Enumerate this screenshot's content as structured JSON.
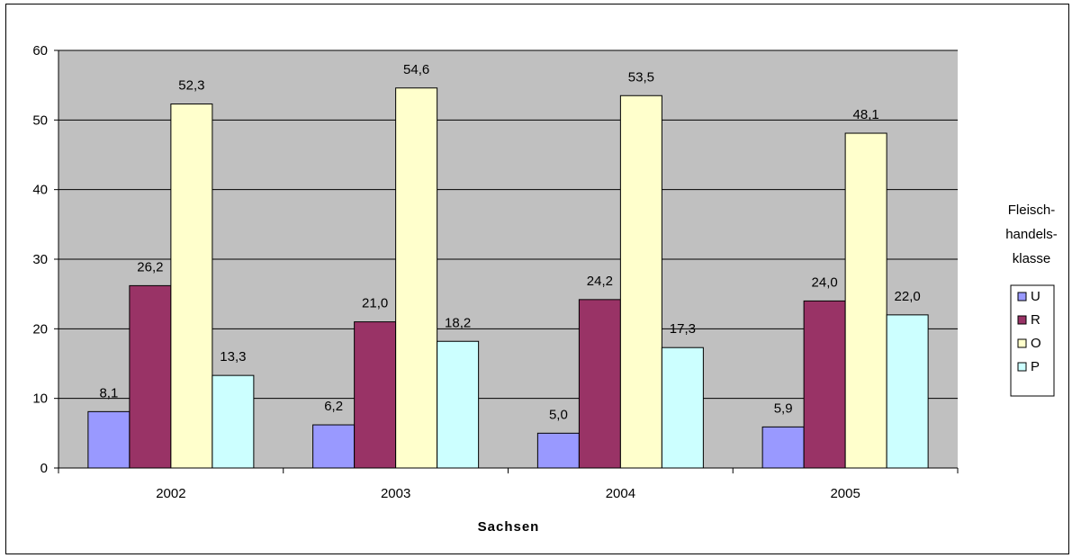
{
  "chart_data": {
    "type": "bar",
    "categories": [
      "2002",
      "2003",
      "2004",
      "2005"
    ],
    "series": [
      {
        "name": "U",
        "values": [
          8.1,
          6.2,
          5.0,
          5.9
        ],
        "labels": [
          "8,1",
          "6,2",
          "5,0",
          "5,9"
        ],
        "color": "#9999ff"
      },
      {
        "name": "R",
        "values": [
          26.2,
          21.0,
          24.2,
          24.0
        ],
        "labels": [
          "26,2",
          "21,0",
          "24,2",
          "24,0"
        ],
        "color": "#993366"
      },
      {
        "name": "O",
        "values": [
          52.3,
          54.6,
          53.5,
          48.1
        ],
        "labels": [
          "52,3",
          "54,6",
          "53,5",
          "48,1"
        ],
        "color": "#ffffcc"
      },
      {
        "name": "P",
        "values": [
          13.3,
          18.2,
          17.3,
          22.0
        ],
        "labels": [
          "13,3",
          "18,2",
          "17,3",
          "22,0"
        ],
        "color": "#ccffff"
      }
    ],
    "xlabel": "Sachsen",
    "ylabel": "",
    "ylim": [
      0,
      60
    ],
    "yticks": [
      0,
      10,
      20,
      30,
      40,
      50,
      60
    ],
    "grid": true,
    "plot_background": "#c0c0c0",
    "legend": {
      "title_lines": [
        "Fleisch-",
        "handels-",
        "klasse"
      ],
      "placement": "right"
    }
  }
}
